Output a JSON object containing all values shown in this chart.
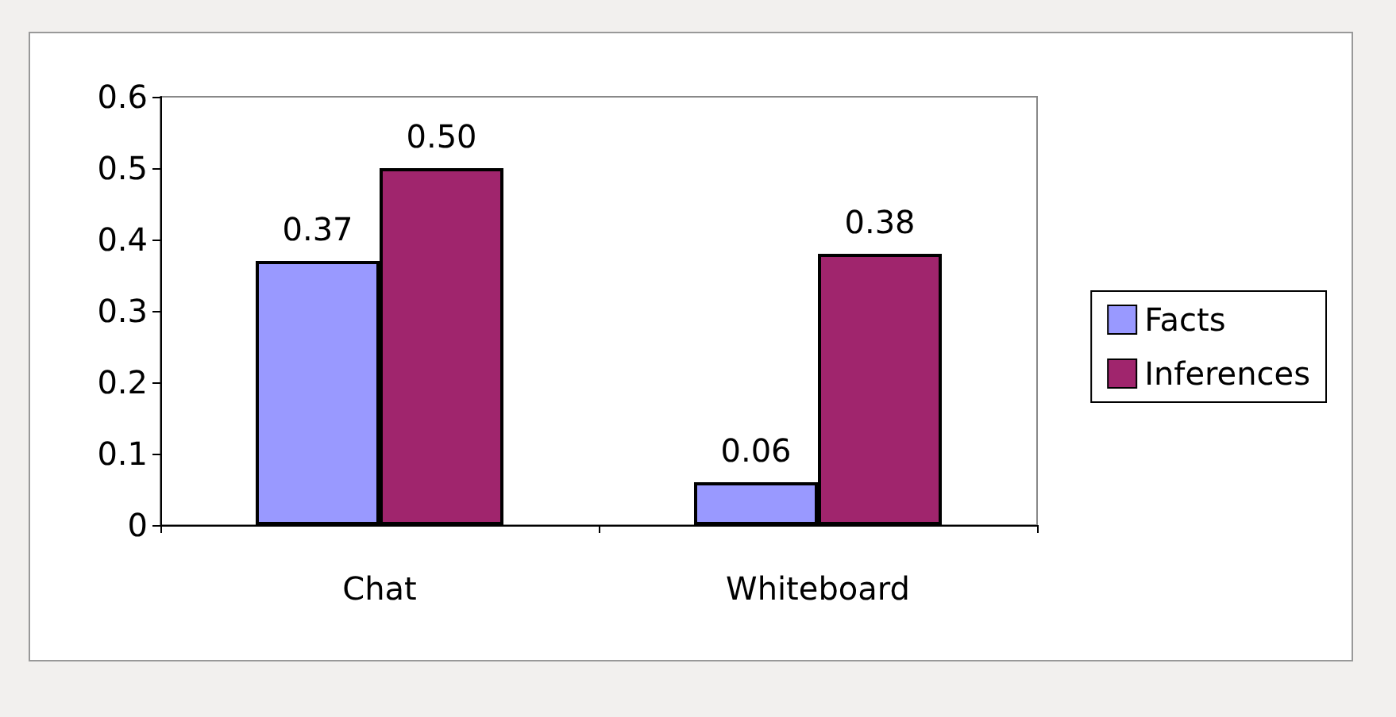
{
  "chart_data": {
    "type": "bar",
    "categories": [
      "Chat",
      "Whiteboard"
    ],
    "series": [
      {
        "name": "Facts",
        "color": "#9999ff",
        "values": [
          0.37,
          0.06
        ],
        "value_labels": [
          "0.37",
          "0.06"
        ]
      },
      {
        "name": "Inferences",
        "color": "#a0256d",
        "values": [
          0.5,
          0.38
        ],
        "value_labels": [
          "0.50",
          "0.38"
        ]
      }
    ],
    "ylim": [
      0,
      0.6
    ],
    "yticks": [
      0,
      0.1,
      0.2,
      0.3,
      0.4,
      0.5,
      0.6
    ],
    "grid": false,
    "legend": "right"
  }
}
